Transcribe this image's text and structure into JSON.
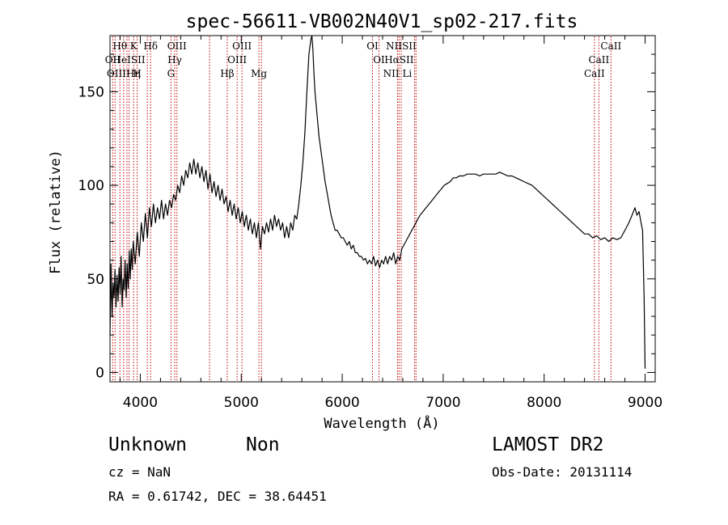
{
  "title": "spec-56611-VB002N40V1_sp02-217.fits",
  "info": {
    "object_class": "Unknown",
    "subclass": "Non",
    "survey": "LAMOST DR2",
    "cz": "cz = NaN",
    "obs_date": "Obs-Date: 20131114",
    "radec": "RA =   0.61742, DEC =  38.64451"
  },
  "chart_data": {
    "type": "line",
    "title": "spec-56611-VB002N40V1_sp02-217.fits",
    "xlabel": "Wavelength (Å)",
    "ylabel": "Flux (relative)",
    "xlim": [
      3700,
      9100
    ],
    "ylim": [
      -5,
      180
    ],
    "xticks": [
      4000,
      5000,
      6000,
      7000,
      8000,
      9000
    ],
    "yticks": [
      0,
      50,
      100,
      150
    ],
    "grid": false,
    "series": [
      {
        "points": [
          [
            3700,
            20
          ],
          [
            3710,
            58
          ],
          [
            3720,
            30
          ],
          [
            3730,
            48
          ],
          [
            3740,
            40
          ],
          [
            3750,
            55
          ],
          [
            3760,
            35
          ],
          [
            3770,
            52
          ],
          [
            3780,
            38
          ],
          [
            3790,
            56
          ],
          [
            3800,
            42
          ],
          [
            3810,
            62
          ],
          [
            3820,
            35
          ],
          [
            3830,
            50
          ],
          [
            3840,
            44
          ],
          [
            3850,
            60
          ],
          [
            3860,
            40
          ],
          [
            3870,
            58
          ],
          [
            3880,
            45
          ],
          [
            3890,
            65
          ],
          [
            3900,
            50
          ],
          [
            3910,
            66
          ],
          [
            3920,
            55
          ],
          [
            3930,
            70
          ],
          [
            3950,
            58
          ],
          [
            3970,
            75
          ],
          [
            3990,
            62
          ],
          [
            4010,
            80
          ],
          [
            4030,
            70
          ],
          [
            4050,
            85
          ],
          [
            4070,
            72
          ],
          [
            4090,
            88
          ],
          [
            4110,
            78
          ],
          [
            4130,
            90
          ],
          [
            4150,
            80
          ],
          [
            4170,
            88
          ],
          [
            4190,
            82
          ],
          [
            4210,
            92
          ],
          [
            4230,
            82
          ],
          [
            4250,
            90
          ],
          [
            4270,
            84
          ],
          [
            4290,
            92
          ],
          [
            4310,
            88
          ],
          [
            4330,
            95
          ],
          [
            4350,
            92
          ],
          [
            4370,
            100
          ],
          [
            4390,
            96
          ],
          [
            4410,
            105
          ],
          [
            4430,
            100
          ],
          [
            4450,
            108
          ],
          [
            4470,
            104
          ],
          [
            4490,
            112
          ],
          [
            4510,
            106
          ],
          [
            4530,
            114
          ],
          [
            4550,
            106
          ],
          [
            4570,
            112
          ],
          [
            4590,
            104
          ],
          [
            4610,
            110
          ],
          [
            4630,
            102
          ],
          [
            4650,
            108
          ],
          [
            4670,
            98
          ],
          [
            4690,
            106
          ],
          [
            4710,
            96
          ],
          [
            4730,
            102
          ],
          [
            4750,
            94
          ],
          [
            4770,
            100
          ],
          [
            4790,
            92
          ],
          [
            4810,
            98
          ],
          [
            4830,
            90
          ],
          [
            4850,
            94
          ],
          [
            4870,
            86
          ],
          [
            4890,
            92
          ],
          [
            4910,
            84
          ],
          [
            4930,
            90
          ],
          [
            4950,
            82
          ],
          [
            4970,
            88
          ],
          [
            4990,
            80
          ],
          [
            5010,
            86
          ],
          [
            5030,
            78
          ],
          [
            5050,
            84
          ],
          [
            5070,
            76
          ],
          [
            5090,
            82
          ],
          [
            5110,
            74
          ],
          [
            5130,
            80
          ],
          [
            5150,
            72
          ],
          [
            5170,
            80
          ],
          [
            5190,
            66
          ],
          [
            5210,
            78
          ],
          [
            5230,
            74
          ],
          [
            5250,
            80
          ],
          [
            5270,
            75
          ],
          [
            5290,
            82
          ],
          [
            5310,
            76
          ],
          [
            5330,
            84
          ],
          [
            5350,
            78
          ],
          [
            5370,
            82
          ],
          [
            5390,
            76
          ],
          [
            5410,
            80
          ],
          [
            5430,
            72
          ],
          [
            5450,
            78
          ],
          [
            5470,
            72
          ],
          [
            5490,
            80
          ],
          [
            5510,
            76
          ],
          [
            5530,
            84
          ],
          [
            5550,
            82
          ],
          [
            5570,
            90
          ],
          [
            5590,
            100
          ],
          [
            5610,
            112
          ],
          [
            5630,
            128
          ],
          [
            5650,
            150
          ],
          [
            5670,
            170
          ],
          [
            5690,
            178
          ],
          [
            5700,
            180
          ],
          [
            5710,
            172
          ],
          [
            5720,
            160
          ],
          [
            5730,
            150
          ],
          [
            5750,
            138
          ],
          [
            5770,
            126
          ],
          [
            5790,
            118
          ],
          [
            5810,
            110
          ],
          [
            5830,
            102
          ],
          [
            5850,
            96
          ],
          [
            5870,
            90
          ],
          [
            5890,
            84
          ],
          [
            5910,
            80
          ],
          [
            5930,
            76
          ],
          [
            5950,
            76
          ],
          [
            5970,
            74
          ],
          [
            5990,
            72
          ],
          [
            6010,
            72
          ],
          [
            6030,
            70
          ],
          [
            6050,
            68
          ],
          [
            6070,
            70
          ],
          [
            6090,
            66
          ],
          [
            6110,
            68
          ],
          [
            6130,
            64
          ],
          [
            6150,
            64
          ],
          [
            6170,
            62
          ],
          [
            6190,
            62
          ],
          [
            6210,
            60
          ],
          [
            6230,
            61
          ],
          [
            6250,
            58
          ],
          [
            6270,
            60
          ],
          [
            6290,
            58
          ],
          [
            6310,
            62
          ],
          [
            6330,
            57
          ],
          [
            6350,
            60
          ],
          [
            6370,
            56
          ],
          [
            6390,
            60
          ],
          [
            6410,
            58
          ],
          [
            6430,
            62
          ],
          [
            6450,
            58
          ],
          [
            6470,
            62
          ],
          [
            6490,
            60
          ],
          [
            6510,
            64
          ],
          [
            6530,
            58
          ],
          [
            6550,
            62
          ],
          [
            6570,
            60
          ],
          [
            6590,
            66
          ],
          [
            6610,
            68
          ],
          [
            6630,
            70
          ],
          [
            6650,
            72
          ],
          [
            6670,
            74
          ],
          [
            6690,
            76
          ],
          [
            6710,
            78
          ],
          [
            6730,
            80
          ],
          [
            6750,
            82
          ],
          [
            6770,
            84
          ],
          [
            6800,
            86
          ],
          [
            6830,
            88
          ],
          [
            6860,
            90
          ],
          [
            6890,
            92
          ],
          [
            6920,
            94
          ],
          [
            6950,
            96
          ],
          [
            6980,
            98
          ],
          [
            7010,
            100
          ],
          [
            7040,
            101
          ],
          [
            7070,
            102
          ],
          [
            7100,
            104
          ],
          [
            7130,
            104
          ],
          [
            7160,
            105
          ],
          [
            7200,
            105
          ],
          [
            7240,
            106
          ],
          [
            7280,
            106
          ],
          [
            7320,
            106
          ],
          [
            7360,
            105
          ],
          [
            7400,
            106
          ],
          [
            7440,
            106
          ],
          [
            7480,
            106
          ],
          [
            7520,
            106
          ],
          [
            7560,
            107
          ],
          [
            7600,
            106
          ],
          [
            7640,
            105
          ],
          [
            7680,
            105
          ],
          [
            7720,
            104
          ],
          [
            7760,
            103
          ],
          [
            7800,
            102
          ],
          [
            7840,
            101
          ],
          [
            7880,
            100
          ],
          [
            7920,
            98
          ],
          [
            7960,
            96
          ],
          [
            8000,
            94
          ],
          [
            8040,
            92
          ],
          [
            8080,
            90
          ],
          [
            8120,
            88
          ],
          [
            8160,
            86
          ],
          [
            8200,
            84
          ],
          [
            8240,
            82
          ],
          [
            8280,
            80
          ],
          [
            8320,
            78
          ],
          [
            8360,
            76
          ],
          [
            8400,
            74
          ],
          [
            8440,
            74
          ],
          [
            8480,
            72
          ],
          [
            8520,
            73
          ],
          [
            8560,
            71
          ],
          [
            8600,
            72
          ],
          [
            8640,
            70
          ],
          [
            8680,
            72
          ],
          [
            8720,
            71
          ],
          [
            8760,
            72
          ],
          [
            8800,
            76
          ],
          [
            8840,
            80
          ],
          [
            8870,
            84
          ],
          [
            8900,
            88
          ],
          [
            8920,
            84
          ],
          [
            8940,
            86
          ],
          [
            8960,
            80
          ],
          [
            8975,
            76
          ],
          [
            8990,
            40
          ],
          [
            9000,
            2
          ]
        ]
      }
    ],
    "line_markers": {
      "lines": [
        {
          "name": "Hθ",
          "x": 3798,
          "tier": 1
        },
        {
          "name": "K",
          "x": 3934,
          "tier": 1
        },
        {
          "name": "Hδ",
          "x": 4102,
          "tier": 1
        },
        {
          "name": "OIII",
          "x": 4363,
          "tier": 1
        },
        {
          "name": "OIII",
          "x": 5007,
          "tier": 1
        },
        {
          "name": "OI",
          "x": 6300,
          "tier": 1
        },
        {
          "name": "NIISII",
          "x": 6584,
          "tier": 1
        },
        {
          "name": "CaII",
          "x": 8662,
          "tier": 1
        },
        {
          "name": "OII",
          "x": 3727,
          "tier": 2
        },
        {
          "name": "HeISII",
          "x": 3889,
          "tier": 2
        },
        {
          "name": "Hγ",
          "x": 4341,
          "tier": 2
        },
        {
          "name": "OIII",
          "x": 4959,
          "tier": 2
        },
        {
          "name": "OI",
          "x": 6364,
          "tier": 2
        },
        {
          "name": "HαSII",
          "x": 6563,
          "tier": 2
        },
        {
          "name": "CaII",
          "x": 8542,
          "tier": 2
        },
        {
          "name": "OIIIHη",
          "x": 3835,
          "tier": 3
        },
        {
          "name": "H",
          "x": 3969,
          "tier": 3
        },
        {
          "name": "G",
          "x": 4304,
          "tier": 3
        },
        {
          "name": "Hβ",
          "x": 4861,
          "tier": 3
        },
        {
          "name": "Mg",
          "x": 5175,
          "tier": 3
        },
        {
          "name": "NII Li",
          "x": 6548,
          "tier": 3
        },
        {
          "name": "CaII",
          "x": 8498,
          "tier": 3
        }
      ],
      "extra_positions": [
        3750,
        3868,
        4070,
        4686,
        5200,
        6717,
        6731
      ]
    }
  }
}
